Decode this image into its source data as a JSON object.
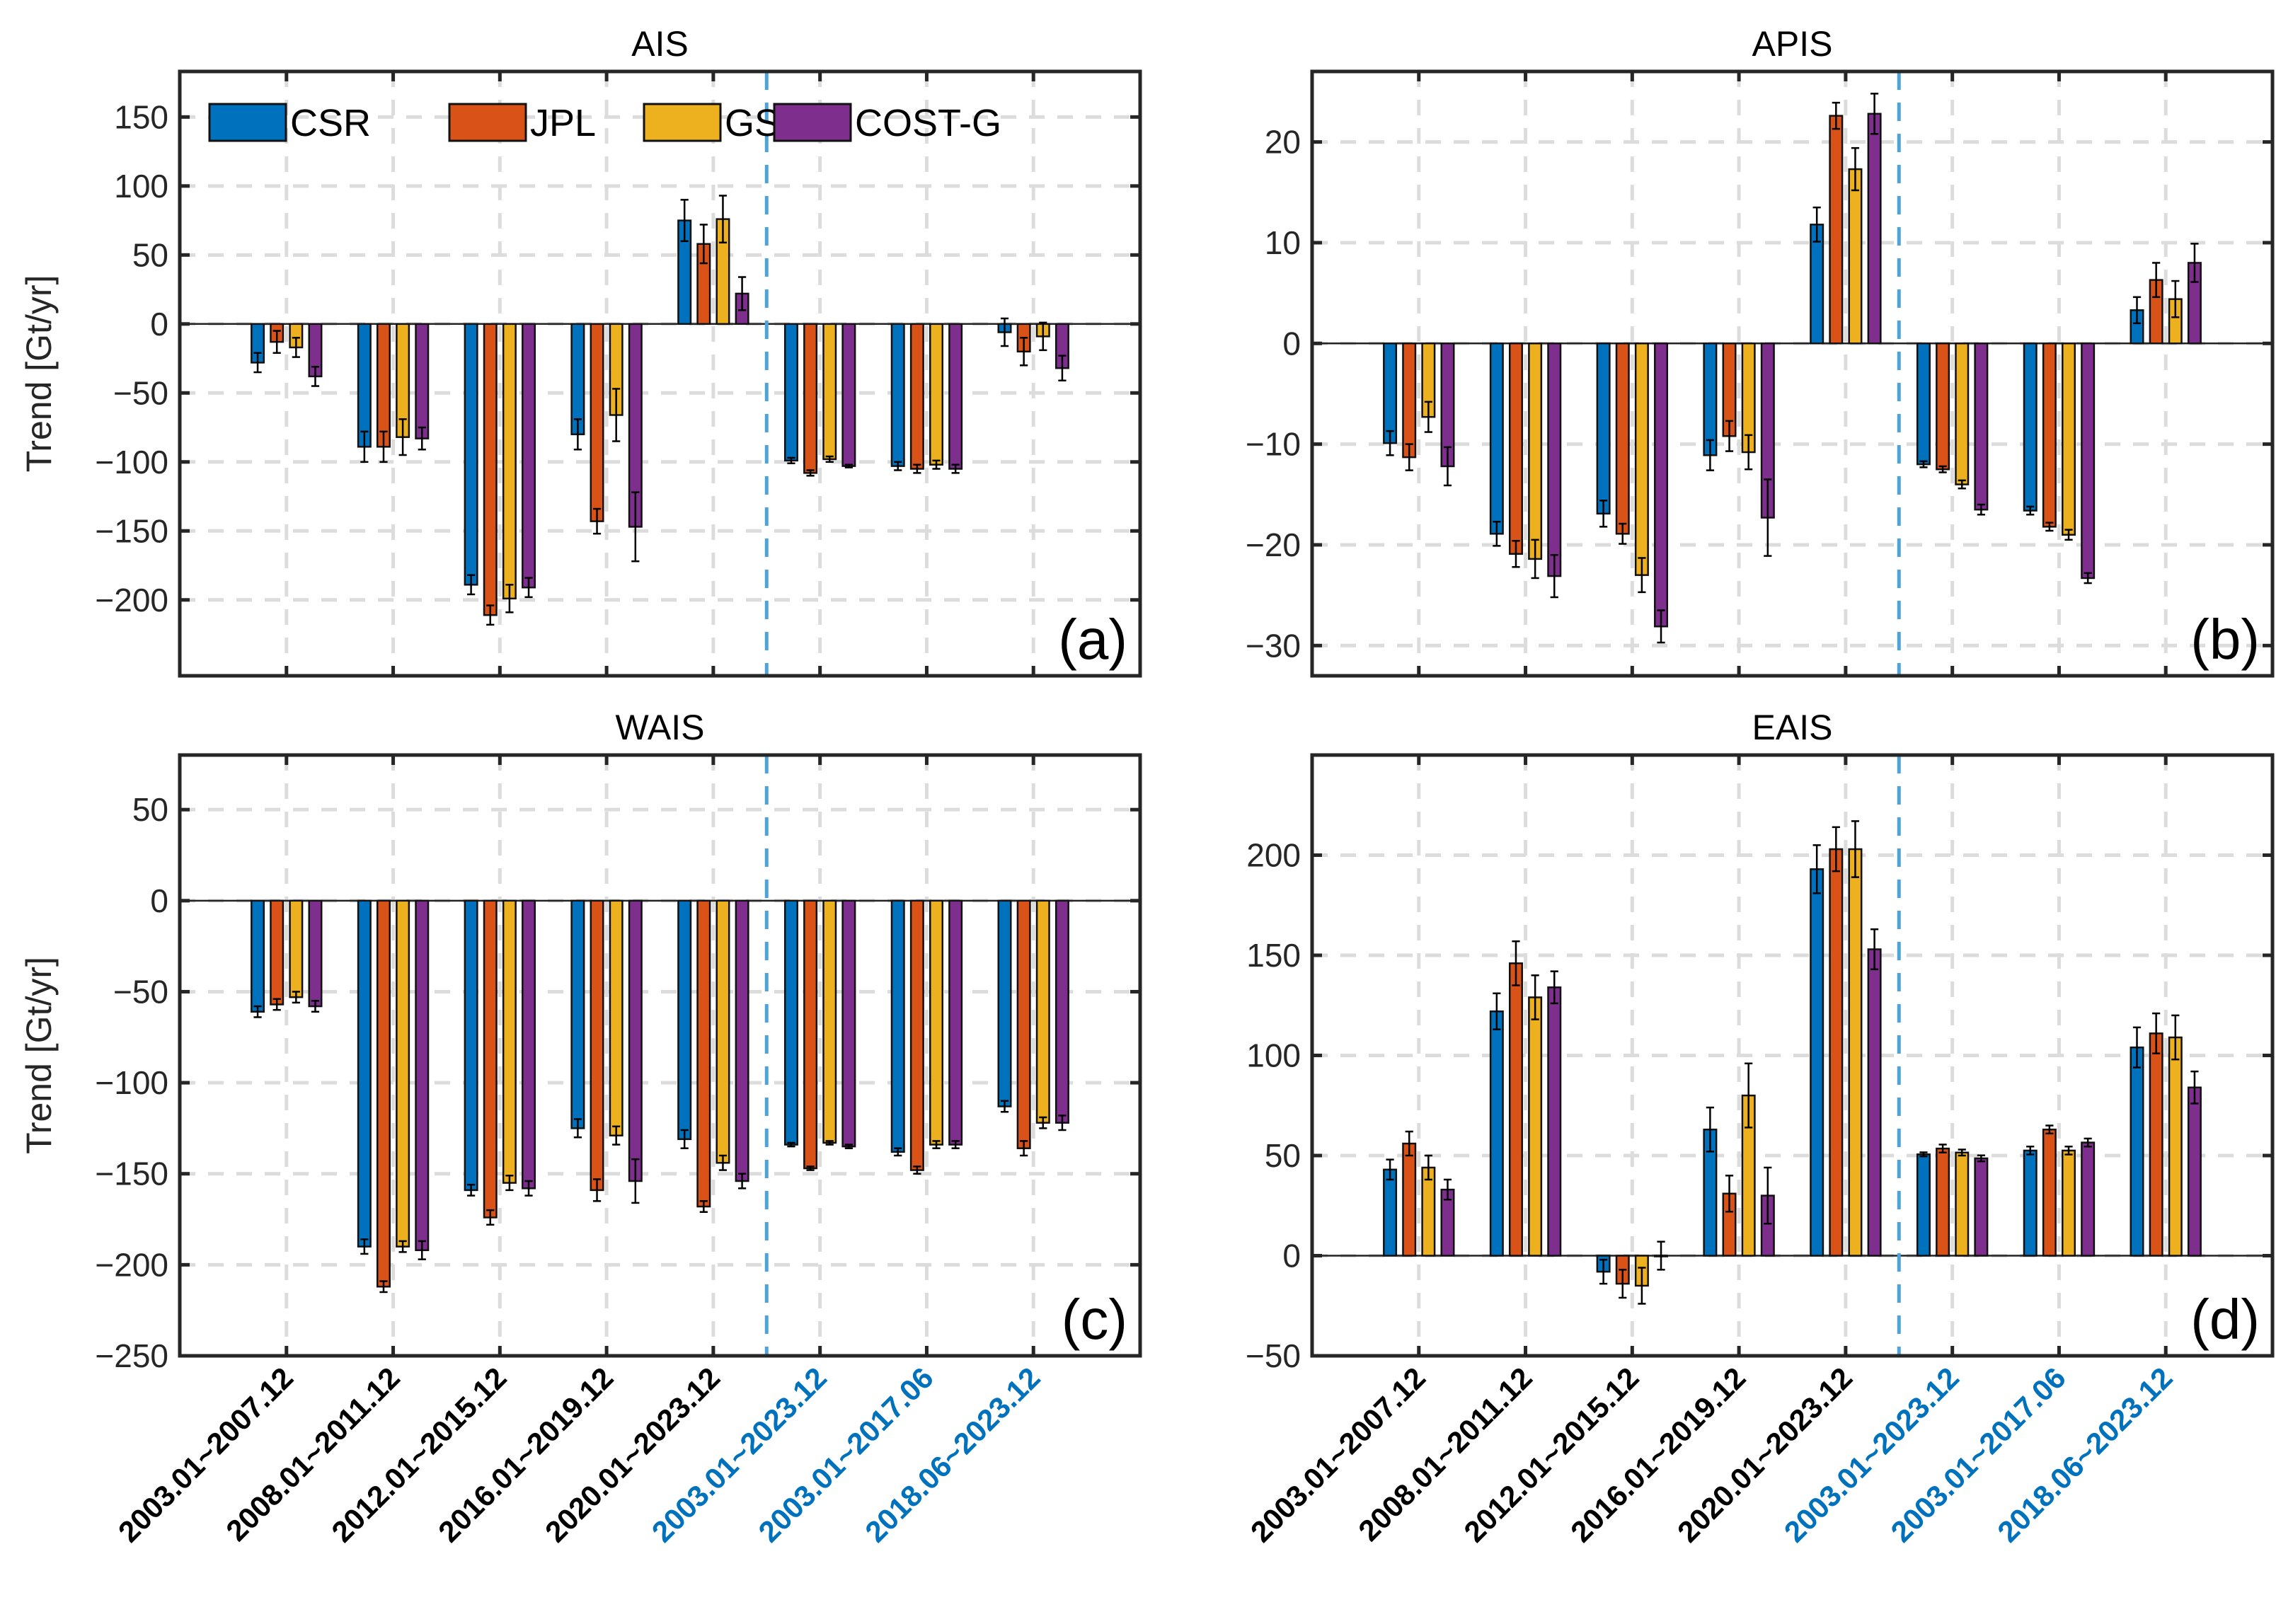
{
  "chart_data": [
    {
      "type": "bar",
      "title": "AIS",
      "panel_label": "(a)",
      "ylabel": "Trend [Gt/yr]",
      "xlabel": "",
      "ylim": [
        -255,
        183
      ],
      "yticks": [
        -200,
        -150,
        -100,
        -50,
        0,
        50,
        100,
        150
      ],
      "grid": true,
      "legend": "top-left",
      "series": [
        {
          "name": "CSR",
          "values": [
            -28,
            -89,
            -189,
            -80,
            75,
            -99,
            -103,
            -6
          ],
          "errors": [
            7,
            11,
            7,
            11,
            15,
            2,
            3,
            10
          ]
        },
        {
          "name": "JPL",
          "values": [
            -13,
            -89,
            -211,
            -143,
            58,
            -108,
            -105,
            -20
          ],
          "errors": [
            8,
            11,
            7,
            9,
            14,
            2,
            3,
            10
          ]
        },
        {
          "name": "GSFC",
          "values": [
            -17,
            -82,
            -199,
            -66,
            76,
            -98,
            -102,
            -9
          ],
          "errors": [
            7,
            13,
            10,
            19,
            17,
            2,
            3,
            10
          ]
        },
        {
          "name": "COST-G",
          "values": [
            -38,
            -83,
            -191,
            -147,
            22,
            -103,
            -105,
            -32
          ],
          "errors": [
            7,
            8,
            7,
            25,
            12,
            1,
            3,
            9
          ]
        }
      ]
    },
    {
      "type": "bar",
      "title": "APIS",
      "panel_label": "(b)",
      "ylabel": "",
      "xlabel": "",
      "ylim": [
        -33,
        27
      ],
      "yticks": [
        -30,
        -20,
        -10,
        0,
        10,
        20
      ],
      "grid": true,
      "series": [
        {
          "name": "CSR",
          "values": [
            -9.9,
            -18.9,
            -16.9,
            -11.1,
            11.8,
            -12.0,
            -16.6,
            3.3
          ],
          "errors": [
            1.2,
            1.2,
            1.3,
            1.5,
            1.7,
            0.3,
            0.4,
            1.3
          ]
        },
        {
          "name": "JPL",
          "values": [
            -11.3,
            -20.9,
            -18.9,
            -9.2,
            22.6,
            -12.5,
            -18.2,
            6.3
          ],
          "errors": [
            1.3,
            1.3,
            1.0,
            1.5,
            1.3,
            0.3,
            0.4,
            1.7
          ]
        },
        {
          "name": "GSFC",
          "values": [
            -7.3,
            -21.4,
            -23.0,
            -10.8,
            17.3,
            -14.0,
            -19.0,
            4.4
          ],
          "errors": [
            1.5,
            1.9,
            1.7,
            1.7,
            2.1,
            0.4,
            0.5,
            1.8
          ]
        },
        {
          "name": "COST-G",
          "values": [
            -12.2,
            -23.1,
            -28.1,
            -17.3,
            22.8,
            -16.5,
            -23.3,
            8.0
          ],
          "errors": [
            1.9,
            2.1,
            1.6,
            3.8,
            2.0,
            0.5,
            0.5,
            1.9
          ]
        }
      ]
    },
    {
      "type": "bar",
      "title": "WAIS",
      "panel_label": "(c)",
      "ylabel": "Trend [Gt/yr]",
      "xlabel": "",
      "ylim": [
        -250,
        80
      ],
      "yticks": [
        -250,
        -200,
        -150,
        -100,
        -50,
        0,
        50
      ],
      "grid": true,
      "series": [
        {
          "name": "CSR",
          "values": [
            -61,
            -190,
            -159,
            -125,
            -131,
            -134,
            -138,
            -113
          ],
          "errors": [
            3,
            4,
            3,
            5,
            5,
            1,
            2,
            3
          ]
        },
        {
          "name": "JPL",
          "values": [
            -57,
            -212,
            -174,
            -159,
            -168,
            -147,
            -148,
            -136
          ],
          "errors": [
            3,
            3,
            4,
            6,
            3,
            1,
            2,
            4
          ]
        },
        {
          "name": "GSFC",
          "values": [
            -53,
            -190,
            -155,
            -129,
            -144,
            -133,
            -134,
            -122
          ],
          "errors": [
            3,
            3,
            4,
            5,
            4,
            1,
            2,
            3
          ]
        },
        {
          "name": "COST-G",
          "values": [
            -58,
            -192,
            -158,
            -154,
            -154,
            -135,
            -134,
            -122
          ],
          "errors": [
            3,
            5,
            4,
            12,
            4,
            1,
            2,
            4
          ]
        }
      ]
    },
    {
      "type": "bar",
      "title": "EAIS",
      "panel_label": "(d)",
      "ylabel": "",
      "xlabel": "",
      "ylim": [
        -50,
        250
      ],
      "yticks": [
        -50,
        0,
        50,
        100,
        150,
        200
      ],
      "grid": true,
      "series": [
        {
          "name": "CSR",
          "values": [
            43,
            122,
            -8,
            63,
            193,
            50.6,
            52.5,
            104
          ],
          "errors": [
            5,
            9,
            6,
            11,
            12,
            1,
            2,
            10
          ]
        },
        {
          "name": "JPL",
          "values": [
            56,
            146,
            -14,
            31,
            203,
            53.5,
            63,
            111
          ],
          "errors": [
            6,
            11,
            7,
            9,
            11,
            2,
            2,
            10
          ]
        },
        {
          "name": "GSFC",
          "values": [
            44,
            129,
            -15,
            80,
            203,
            51.5,
            52.5,
            109
          ],
          "errors": [
            6,
            11,
            9,
            16,
            14,
            1.5,
            2,
            11
          ]
        },
        {
          "name": "COST-G",
          "values": [
            33,
            134,
            0,
            30,
            153,
            48.6,
            56.5,
            84
          ],
          "errors": [
            5,
            8,
            7,
            14,
            10,
            1.5,
            2,
            8
          ]
        }
      ]
    }
  ],
  "categories": [
    "2003.01~2007.12",
    "2008.01~2011.12",
    "2012.01~2015.12",
    "2016.01~2019.12",
    "2020.01~2023.12",
    "2003.01~2023.12",
    "2003.01~2017.06",
    "2018.06~2023.12"
  ],
  "highlighted_categories": [
    5,
    6,
    7
  ],
  "divider_after_category": 5,
  "legend": [
    "CSR",
    "JPL",
    "GSFC",
    "COST-G"
  ],
  "colors": {
    "CSR": "#0072BD",
    "JPL": "#D95319",
    "GSFC": "#EDB120",
    "COST-G": "#7E2F8E",
    "highlight_text": "#0072BD",
    "divider": "#4DA3DB"
  }
}
